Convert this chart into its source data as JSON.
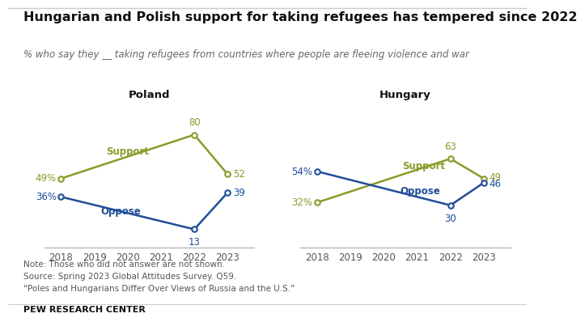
{
  "title": "Hungarian and Polish support for taking refugees has tempered since 2022",
  "subtitle": "% who say they __ taking refugees from countries where people are fleeing violence and war",
  "poland": {
    "label": "Poland",
    "years": [
      2018,
      2022,
      2023
    ],
    "support": [
      49,
      80,
      52
    ],
    "oppose": [
      36,
      13,
      39
    ]
  },
  "hungary": {
    "label": "Hungary",
    "years": [
      2018,
      2022,
      2023
    ],
    "support": [
      32,
      63,
      49
    ],
    "oppose": [
      54,
      30,
      46
    ]
  },
  "support_color": "#8b9a2a",
  "oppose_color": "#1f4e99",
  "support_label": "Support",
  "oppose_label": "Oppose",
  "note_lines": [
    "Note: Those who did not answer are not shown.",
    "Source: Spring 2023 Global Attitudes Survey. Q59.",
    "“Poles and Hungarians Differ Over Views of Russia and the U.S.”"
  ],
  "footer": "PEW RESEARCH CENTER",
  "xlim": [
    2017.5,
    2023.8
  ],
  "ylim": [
    0,
    95
  ],
  "xticks": [
    2018,
    2019,
    2020,
    2021,
    2022,
    2023
  ],
  "bg_color": "#ffffff",
  "title_fontsize": 11.5,
  "subtitle_fontsize": 8.5,
  "data_label_fontsize": 8.5,
  "panel_title_fontsize": 9.5,
  "note_fontsize": 7.5,
  "footer_fontsize": 8.0,
  "tick_fontsize": 8.5
}
